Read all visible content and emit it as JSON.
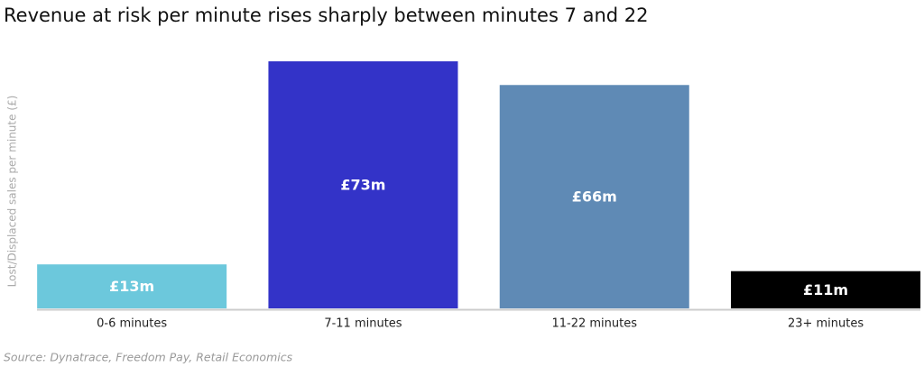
{
  "chart_data": {
    "type": "bar",
    "title": "Revenue at risk per minute rises sharply between minutes 7 and 22",
    "y_label": "Lost/Displaced sales per minute (£)",
    "source": "Source: Dynatrace, Freedom Pay, Retail Economics",
    "categories": [
      "0-6 minutes",
      "7-11 minutes",
      "11-22 minutes",
      "23+ minutes"
    ],
    "values": [
      13,
      73,
      66,
      11
    ],
    "value_labels": [
      "£13m",
      "£73m",
      "£66m",
      "£11m"
    ],
    "colors": [
      "#6cc8dc",
      "#3333c8",
      "#5f8ab5",
      "#000000"
    ]
  }
}
